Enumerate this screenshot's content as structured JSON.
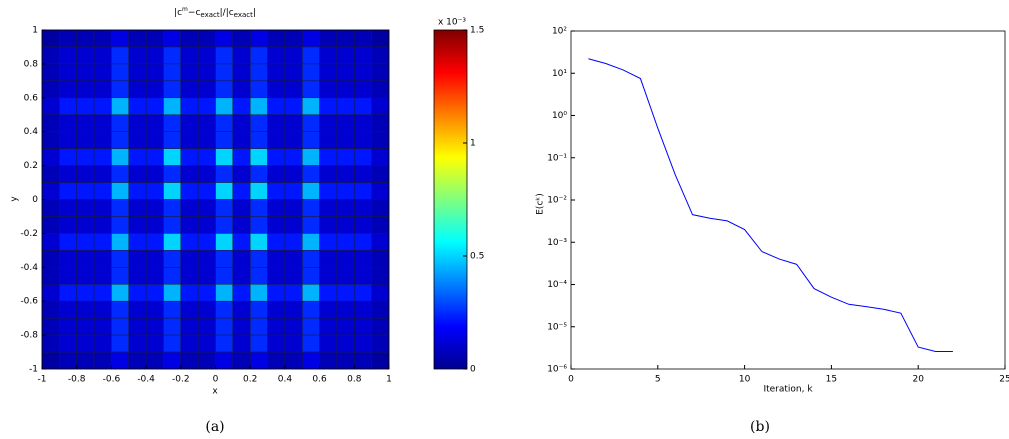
{
  "chart_data": [
    {
      "type": "heatmap",
      "title": [
        "|c",
        "m",
        "−c",
        "exact",
        "|/|c",
        "exact",
        "|"
      ],
      "xlabel": "x",
      "ylabel": "y",
      "caption": "(a)",
      "xlim": [
        -1,
        1
      ],
      "ylim": [
        -1,
        1
      ],
      "xticks": [
        -1,
        -0.8,
        -0.6,
        -0.4,
        -0.2,
        0,
        0.2,
        0.4,
        0.6,
        0.8,
        1
      ],
      "yticks": [
        -1,
        -0.8,
        -0.6,
        -0.4,
        -0.2,
        0,
        0.2,
        0.4,
        0.6,
        0.8,
        1
      ],
      "colormap": "jet",
      "clim": [
        0,
        1.5
      ],
      "cticks": [
        0,
        0.5,
        1,
        1.5
      ],
      "colorbar_label": "x 10⁻³",
      "z": [
        [
          0.05,
          0.08,
          0.08,
          0.08,
          0.15,
          0.08,
          0.08,
          0.15,
          0.08,
          0.08,
          0.15,
          0.08,
          0.15,
          0.08,
          0.08,
          0.15,
          0.08,
          0.08,
          0.08,
          0.05
        ],
        [
          0.08,
          0.12,
          0.12,
          0.12,
          0.25,
          0.12,
          0.12,
          0.25,
          0.12,
          0.12,
          0.25,
          0.12,
          0.25,
          0.12,
          0.12,
          0.25,
          0.12,
          0.12,
          0.12,
          0.08
        ],
        [
          0.08,
          0.12,
          0.12,
          0.12,
          0.25,
          0.12,
          0.12,
          0.25,
          0.12,
          0.12,
          0.25,
          0.12,
          0.25,
          0.12,
          0.12,
          0.25,
          0.12,
          0.12,
          0.12,
          0.08
        ],
        [
          0.08,
          0.12,
          0.12,
          0.12,
          0.25,
          0.12,
          0.12,
          0.25,
          0.12,
          0.12,
          0.25,
          0.12,
          0.25,
          0.12,
          0.12,
          0.25,
          0.12,
          0.12,
          0.12,
          0.08
        ],
        [
          0.12,
          0.22,
          0.22,
          0.22,
          0.45,
          0.22,
          0.22,
          0.45,
          0.22,
          0.22,
          0.45,
          0.22,
          0.45,
          0.22,
          0.22,
          0.45,
          0.22,
          0.22,
          0.22,
          0.12
        ],
        [
          0.08,
          0.12,
          0.12,
          0.12,
          0.25,
          0.12,
          0.12,
          0.25,
          0.12,
          0.12,
          0.25,
          0.12,
          0.25,
          0.12,
          0.12,
          0.25,
          0.12,
          0.12,
          0.12,
          0.08
        ],
        [
          0.08,
          0.12,
          0.12,
          0.12,
          0.25,
          0.12,
          0.12,
          0.25,
          0.12,
          0.12,
          0.25,
          0.12,
          0.25,
          0.12,
          0.12,
          0.25,
          0.12,
          0.12,
          0.12,
          0.08
        ],
        [
          0.12,
          0.22,
          0.22,
          0.22,
          0.45,
          0.22,
          0.22,
          0.5,
          0.22,
          0.22,
          0.5,
          0.22,
          0.5,
          0.22,
          0.22,
          0.45,
          0.22,
          0.22,
          0.22,
          0.12
        ],
        [
          0.08,
          0.12,
          0.12,
          0.12,
          0.25,
          0.12,
          0.12,
          0.25,
          0.12,
          0.12,
          0.25,
          0.12,
          0.25,
          0.12,
          0.12,
          0.25,
          0.12,
          0.12,
          0.12,
          0.08
        ],
        [
          0.12,
          0.22,
          0.22,
          0.22,
          0.45,
          0.22,
          0.22,
          0.5,
          0.22,
          0.22,
          0.5,
          0.22,
          0.5,
          0.22,
          0.22,
          0.45,
          0.22,
          0.22,
          0.22,
          0.12
        ],
        [
          0.08,
          0.12,
          0.12,
          0.12,
          0.25,
          0.12,
          0.12,
          0.25,
          0.12,
          0.12,
          0.25,
          0.12,
          0.25,
          0.12,
          0.12,
          0.25,
          0.12,
          0.12,
          0.12,
          0.08
        ],
        [
          0.08,
          0.12,
          0.12,
          0.12,
          0.25,
          0.12,
          0.12,
          0.25,
          0.12,
          0.12,
          0.25,
          0.12,
          0.25,
          0.12,
          0.12,
          0.25,
          0.12,
          0.12,
          0.12,
          0.08
        ],
        [
          0.12,
          0.22,
          0.22,
          0.22,
          0.45,
          0.22,
          0.22,
          0.5,
          0.22,
          0.22,
          0.5,
          0.22,
          0.5,
          0.22,
          0.22,
          0.45,
          0.22,
          0.22,
          0.22,
          0.12
        ],
        [
          0.08,
          0.12,
          0.12,
          0.12,
          0.25,
          0.12,
          0.12,
          0.25,
          0.12,
          0.12,
          0.25,
          0.12,
          0.25,
          0.12,
          0.12,
          0.25,
          0.12,
          0.12,
          0.12,
          0.08
        ],
        [
          0.08,
          0.12,
          0.12,
          0.12,
          0.25,
          0.12,
          0.12,
          0.25,
          0.12,
          0.12,
          0.25,
          0.12,
          0.25,
          0.12,
          0.12,
          0.25,
          0.12,
          0.12,
          0.12,
          0.08
        ],
        [
          0.12,
          0.22,
          0.22,
          0.22,
          0.45,
          0.22,
          0.22,
          0.45,
          0.22,
          0.22,
          0.45,
          0.22,
          0.45,
          0.22,
          0.22,
          0.45,
          0.22,
          0.22,
          0.22,
          0.12
        ],
        [
          0.08,
          0.12,
          0.12,
          0.12,
          0.25,
          0.12,
          0.12,
          0.25,
          0.12,
          0.12,
          0.25,
          0.12,
          0.25,
          0.12,
          0.12,
          0.25,
          0.12,
          0.12,
          0.12,
          0.08
        ],
        [
          0.08,
          0.12,
          0.12,
          0.12,
          0.25,
          0.12,
          0.12,
          0.25,
          0.12,
          0.12,
          0.25,
          0.12,
          0.25,
          0.12,
          0.12,
          0.25,
          0.12,
          0.12,
          0.12,
          0.08
        ],
        [
          0.08,
          0.12,
          0.12,
          0.12,
          0.25,
          0.12,
          0.12,
          0.25,
          0.12,
          0.12,
          0.25,
          0.12,
          0.25,
          0.12,
          0.12,
          0.25,
          0.12,
          0.12,
          0.12,
          0.08
        ],
        [
          0.05,
          0.08,
          0.08,
          0.08,
          0.15,
          0.08,
          0.08,
          0.15,
          0.08,
          0.08,
          0.15,
          0.08,
          0.15,
          0.08,
          0.08,
          0.15,
          0.08,
          0.08,
          0.08,
          0.05
        ]
      ]
    },
    {
      "type": "line",
      "ylabel": "E(cᵏ)",
      "xlabel": "Iteration, k",
      "caption": "(b)",
      "yscale": "log",
      "xlim": [
        0,
        25
      ],
      "xticks": [
        0,
        5,
        10,
        15,
        20,
        25
      ],
      "ylim": [
        1e-06,
        100
      ],
      "yticks": [
        {
          "value": 1e-06,
          "label": "10⁻⁶"
        },
        {
          "value": 1e-05,
          "label": "10⁻⁵"
        },
        {
          "value": 0.0001,
          "label": "10⁻⁴"
        },
        {
          "value": 0.001,
          "label": "10⁻³"
        },
        {
          "value": 0.01,
          "label": "10⁻²"
        },
        {
          "value": 0.1,
          "label": "10⁻¹"
        },
        {
          "value": 1,
          "label": "10⁰"
        },
        {
          "value": 10,
          "label": "10¹"
        },
        {
          "value": 100,
          "label": "10²"
        }
      ],
      "x": [
        1,
        2,
        3,
        4,
        5,
        6,
        7,
        8,
        9,
        10,
        11,
        12,
        13,
        14,
        15,
        16,
        17,
        18,
        19,
        20,
        21,
        22
      ],
      "color": "#0000ff",
      "values": [
        22,
        17,
        12,
        7.5,
        0.5,
        0.04,
        0.0045,
        0.0037,
        0.0032,
        0.002,
        0.0006,
        0.0004,
        0.0003,
        8e-05,
        5e-05,
        3.4e-05,
        3e-05,
        2.6e-05,
        2.1e-05,
        3.3e-06,
        2.6e-06,
        2.6e-06
      ]
    }
  ]
}
